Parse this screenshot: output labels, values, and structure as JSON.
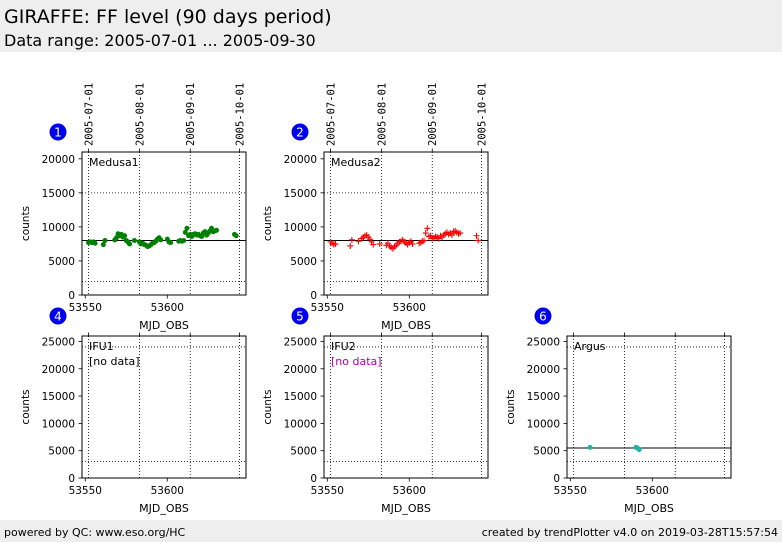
{
  "header": {
    "title": "GIRAFFE: FF level (90 days period)",
    "subtitle": "Data range: 2005-07-01 ... 2005-09-30"
  },
  "footer": {
    "left": "powered by QC: www.eso.org/HC",
    "right": "created by trendPlotter v4.0 on 2019-03-28T15:57:54"
  },
  "colors": {
    "marker_badge": "#0000ee",
    "medusa1": "#008000",
    "medusa2": "#ff0000",
    "argus": "#20b2aa",
    "no_data_ifu2": "#aa00aa"
  },
  "chart_data": [
    {
      "type": "scatter",
      "marker_label": "1",
      "panel_label": "Medusa1",
      "xlabel": "MJD_OBS",
      "ylabel": "counts",
      "xlim": [
        53548,
        53648
      ],
      "ylim": [
        0,
        21000
      ],
      "xticks": [
        53550,
        53600
      ],
      "yticks": [
        0,
        5000,
        10000,
        15000,
        20000
      ],
      "date_ticks": [
        {
          "label": "2005-07-01",
          "mjd": 53552
        },
        {
          "label": "2005-08-01",
          "mjd": 53583
        },
        {
          "label": "2005-09-01",
          "mjd": 53614
        },
        {
          "label": "2005-10-01",
          "mjd": 53644
        }
      ],
      "ref_line": 8000,
      "dotted_lines": [
        2000,
        15000
      ],
      "marker": "dot",
      "color": "#008000",
      "no_data": "",
      "x": [
        53552,
        53553,
        53554,
        53555,
        53556,
        53561,
        53562,
        53568,
        53569,
        53570,
        53571,
        53572,
        53573,
        53574,
        53575,
        53576,
        53577,
        53580,
        53583,
        53584,
        53585,
        53586,
        53587,
        53588,
        53589,
        53590,
        53591,
        53592,
        53593,
        53594,
        53595,
        53596,
        53600,
        53601,
        53602,
        53607,
        53608,
        53609,
        53610,
        53611,
        53612,
        53613,
        53614,
        53615,
        53616,
        53617,
        53618,
        53619,
        53620,
        53621,
        53622,
        53623,
        53624,
        53625,
        53626,
        53627,
        53628,
        53629,
        53630,
        53641,
        53642
      ],
      "y": [
        7700,
        7800,
        7700,
        7800,
        7600,
        7400,
        8000,
        8100,
        8400,
        9000,
        8700,
        8900,
        8500,
        8700,
        8000,
        7800,
        7500,
        8000,
        7800,
        7500,
        7600,
        7400,
        7300,
        7100,
        7200,
        7400,
        7600,
        7700,
        7900,
        8200,
        8400,
        8100,
        8200,
        7800,
        7700,
        7900,
        8000,
        7900,
        8000,
        9200,
        9800,
        8700,
        8900,
        8600,
        8900,
        9000,
        8800,
        8900,
        8700,
        8600,
        9100,
        9300,
        8800,
        9100,
        9400,
        9800,
        9300,
        9400,
        9500,
        8900,
        8700
      ]
    },
    {
      "type": "scatter",
      "marker_label": "2",
      "panel_label": "Medusa2",
      "xlabel": "MJD_OBS",
      "ylabel": "counts",
      "xlim": [
        53548,
        53648
      ],
      "ylim": [
        0,
        21000
      ],
      "xticks": [
        53550,
        53600
      ],
      "yticks": [
        0,
        5000,
        10000,
        15000,
        20000
      ],
      "date_ticks": [
        {
          "label": "2005-07-01",
          "mjd": 53552
        },
        {
          "label": "2005-08-01",
          "mjd": 53583
        },
        {
          "label": "2005-09-01",
          "mjd": 53614
        },
        {
          "label": "2005-10-01",
          "mjd": 53644
        }
      ],
      "ref_line": 8000,
      "dotted_lines": [
        2000,
        15000
      ],
      "marker": "plus",
      "color": "#ff0000",
      "no_data": "",
      "x": [
        53552,
        53553,
        53554,
        53555,
        53564,
        53565,
        53569,
        53571,
        53572,
        53573,
        53574,
        53575,
        53576,
        53577,
        53578,
        53582,
        53586,
        53587,
        53588,
        53589,
        53590,
        53591,
        53592,
        53593,
        53594,
        53595,
        53596,
        53597,
        53598,
        53599,
        53600,
        53601,
        53602,
        53606,
        53607,
        53608,
        53609,
        53610,
        53611,
        53612,
        53613,
        53614,
        53615,
        53616,
        53617,
        53618,
        53619,
        53620,
        53621,
        53622,
        53623,
        53624,
        53625,
        53626,
        53627,
        53628,
        53629,
        53630,
        53631,
        53641,
        53642
      ],
      "y": [
        7800,
        7600,
        7400,
        7500,
        7200,
        8100,
        7900,
        8300,
        8500,
        8700,
        8800,
        8500,
        8200,
        7800,
        7400,
        7500,
        7300,
        7600,
        7200,
        7000,
        6800,
        7100,
        7300,
        7600,
        7800,
        7900,
        8100,
        7800,
        7600,
        7400,
        7700,
        7900,
        7500,
        7600,
        7700,
        7900,
        8000,
        9100,
        9800,
        8600,
        8700,
        8300,
        8400,
        8600,
        8500,
        8300,
        8700,
        8500,
        8800,
        9000,
        9200,
        8900,
        9100,
        8800,
        9300,
        9400,
        9200,
        9000,
        9100,
        8700,
        8000
      ]
    },
    {
      "type": "scatter",
      "marker_label": "4",
      "panel_label": "IFU1",
      "xlabel": "MJD_OBS",
      "ylabel": "counts",
      "xlim": [
        53548,
        53648
      ],
      "ylim": [
        0,
        26000
      ],
      "xticks": [
        53550,
        53600
      ],
      "yticks": [
        0,
        5000,
        10000,
        15000,
        20000,
        25000
      ],
      "date_ticks": [
        {
          "mjd": 53552
        },
        {
          "mjd": 53583
        },
        {
          "mjd": 53614
        },
        {
          "mjd": 53644
        }
      ],
      "ref_line": null,
      "dotted_lines": [
        3000,
        24000
      ],
      "marker": "dot",
      "color": "#000000",
      "no_data": "[no data]",
      "no_data_color": "#000000",
      "x": [],
      "y": []
    },
    {
      "type": "scatter",
      "marker_label": "5",
      "panel_label": "IFU2",
      "xlabel": "MJD_OBS",
      "ylabel": "counts",
      "xlim": [
        53548,
        53648
      ],
      "ylim": [
        0,
        26000
      ],
      "xticks": [
        53550,
        53600
      ],
      "yticks": [
        0,
        5000,
        10000,
        15000,
        20000,
        25000
      ],
      "date_ticks": [
        {
          "mjd": 53552
        },
        {
          "mjd": 53583
        },
        {
          "mjd": 53614
        },
        {
          "mjd": 53644
        }
      ],
      "ref_line": null,
      "dotted_lines": [
        3000,
        24000
      ],
      "marker": "dot",
      "color": "#aa00aa",
      "no_data": "[no data]",
      "no_data_color": "#aa00aa",
      "x": [],
      "y": []
    },
    {
      "type": "scatter",
      "marker_label": "6",
      "panel_label": "Argus",
      "xlabel": "MJD_OBS",
      "ylabel": "counts",
      "xlim": [
        53548,
        53648
      ],
      "ylim": [
        0,
        26000
      ],
      "xticks": [
        53550,
        53600
      ],
      "yticks": [
        0,
        5000,
        10000,
        15000,
        20000,
        25000
      ],
      "date_ticks": [
        {
          "mjd": 53552
        },
        {
          "mjd": 53583
        },
        {
          "mjd": 53614
        },
        {
          "mjd": 53644
        }
      ],
      "ref_line": 5500,
      "dotted_lines": [
        3000,
        24000
      ],
      "marker": "dot",
      "color": "#20b2aa",
      "no_data": "",
      "x": [
        53562,
        53590,
        53591,
        53592
      ],
      "y": [
        5600,
        5600,
        5500,
        5200
      ]
    }
  ]
}
